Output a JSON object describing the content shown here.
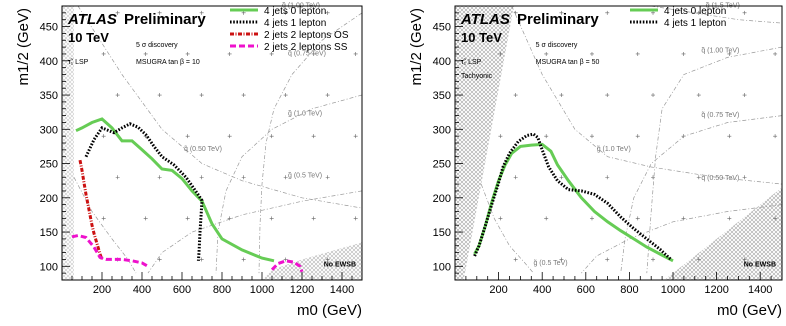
{
  "chart_data": [
    {
      "type": "line",
      "title": "",
      "xlabel": "m0 (GeV)",
      "ylabel": "m1/2 (GeV)",
      "xlim": [
        0,
        1500
      ],
      "ylim": [
        80,
        480
      ],
      "xticks": [
        200,
        400,
        600,
        800,
        1000,
        1200,
        1400
      ],
      "yticks": [
        100,
        150,
        200,
        250,
        300,
        350,
        400,
        450
      ],
      "grid": false,
      "legend_position": "top-right",
      "header": {
        "brand": "ATLAS",
        "status": "Preliminary",
        "energy": "10 TeV"
      },
      "annotations": {
        "discovery": "5 σ discovery",
        "model": "MSUGRA tan β = 10",
        "lsp": "τ̃₁ LSP",
        "no_ewsb": "No EWSB",
        "tachyonic": ""
      },
      "contours": [
        {
          "label": "q̃ (1.00 TeV)",
          "color": "#888888"
        },
        {
          "label": "q̃ (0.75 TeV)",
          "color": "#888888"
        },
        {
          "label": "g̃ (1.0 TeV)",
          "color": "#888888"
        },
        {
          "label": "q̃ (0.50 TeV)",
          "color": "#888888"
        },
        {
          "label": "g̃ (0.5 TeV)",
          "color": "#888888"
        }
      ],
      "series": [
        {
          "name": "4 jets 0 lepton",
          "color": "#66cc55",
          "style": "solid",
          "x": [
            70,
            100,
            150,
            200,
            250,
            300,
            350,
            400,
            450,
            500,
            550,
            600,
            650,
            700,
            750,
            800,
            900,
            1000,
            1060
          ],
          "y": [
            298,
            302,
            310,
            315,
            302,
            283,
            283,
            270,
            257,
            242,
            240,
            228,
            210,
            195,
            162,
            140,
            124,
            112,
            108
          ]
        },
        {
          "name": "4 jets 1 lepton",
          "color": "#000000",
          "style": "dotted",
          "x": [
            120,
            160,
            200,
            260,
            300,
            340,
            380,
            420,
            460,
            500,
            560,
            620,
            680,
            700,
            690,
            685,
            682
          ],
          "y": [
            260,
            285,
            302,
            295,
            302,
            308,
            303,
            292,
            275,
            260,
            248,
            230,
            205,
            196,
            150,
            120,
            108
          ]
        },
        {
          "name": "2 jets 2 leptons OS",
          "color": "#cc1111",
          "style": "dashdot",
          "x": [
            90,
            100,
            110,
            120,
            130,
            140,
            150,
            160,
            170,
            180,
            190,
            200
          ],
          "y": [
            255,
            240,
            222,
            205,
            190,
            175,
            160,
            148,
            138,
            128,
            118,
            110
          ]
        },
        {
          "name": "2 jets 2 leptons SS",
          "color": "#ee11cc",
          "style": "dashed",
          "x": [
            50,
            80,
            120,
            160,
            190,
            220,
            250,
            300,
            350,
            400,
            430
          ],
          "y": [
            143,
            145,
            142,
            128,
            113,
            110,
            110,
            110,
            108,
            105,
            100
          ],
          "x2": [
            1050,
            1080,
            1120,
            1160,
            1190,
            1200
          ],
          "y2": [
            95,
            104,
            108,
            106,
            100,
            92
          ]
        }
      ]
    },
    {
      "type": "line",
      "title": "",
      "xlabel": "m0 (GeV)",
      "ylabel": "m1/2 (GeV)",
      "xlim": [
        0,
        1500
      ],
      "ylim": [
        80,
        480
      ],
      "xticks": [
        200,
        400,
        600,
        800,
        1000,
        1200,
        1400
      ],
      "yticks": [
        100,
        150,
        200,
        250,
        300,
        350,
        400,
        450
      ],
      "grid": false,
      "legend_position": "top-right",
      "header": {
        "brand": "ATLAS",
        "status": "Preliminary",
        "energy": "10 TeV"
      },
      "annotations": {
        "discovery": "5 σ discovery",
        "model": "MSUGRA tan β = 50",
        "lsp": "τ̃₁ LSP",
        "no_ewsb": "No EWSB",
        "tachyonic": "Tachyonic"
      },
      "contours": [
        {
          "label": "q̃ (1.5 TeV)",
          "color": "#888888"
        },
        {
          "label": "q̃ (1.00 TeV)",
          "color": "#888888"
        },
        {
          "label": "q̃ (0.75 TeV)",
          "color": "#888888"
        },
        {
          "label": "g̃ (1.0 TeV)",
          "color": "#888888"
        },
        {
          "label": "q̃ (0.50 TeV)",
          "color": "#888888"
        },
        {
          "label": "g̃ (0.5 TeV)",
          "color": "#888888"
        }
      ],
      "series": [
        {
          "name": "4 jets 0 lepton",
          "color": "#66cc55",
          "style": "solid",
          "x": [
            90,
            110,
            140,
            170,
            200,
            230,
            260,
            300,
            350,
            400,
            440,
            470,
            520,
            580,
            640,
            700,
            760,
            820,
            880,
            940,
            1000
          ],
          "y": [
            118,
            130,
            160,
            195,
            225,
            248,
            265,
            275,
            277,
            278,
            268,
            248,
            225,
            200,
            180,
            165,
            152,
            140,
            128,
            118,
            108
          ]
        },
        {
          "name": "4 jets 1 lepton",
          "color": "#000000",
          "style": "dotted",
          "x": [
            90,
            110,
            140,
            170,
            200,
            220,
            250,
            290,
            330,
            360,
            380,
            400,
            430,
            470,
            520,
            580,
            640,
            700,
            760,
            820,
            880,
            940,
            990
          ],
          "y": [
            115,
            130,
            160,
            192,
            222,
            245,
            265,
            282,
            291,
            293,
            288,
            270,
            245,
            225,
            212,
            210,
            205,
            192,
            172,
            155,
            140,
            125,
            110
          ]
        }
      ]
    }
  ]
}
